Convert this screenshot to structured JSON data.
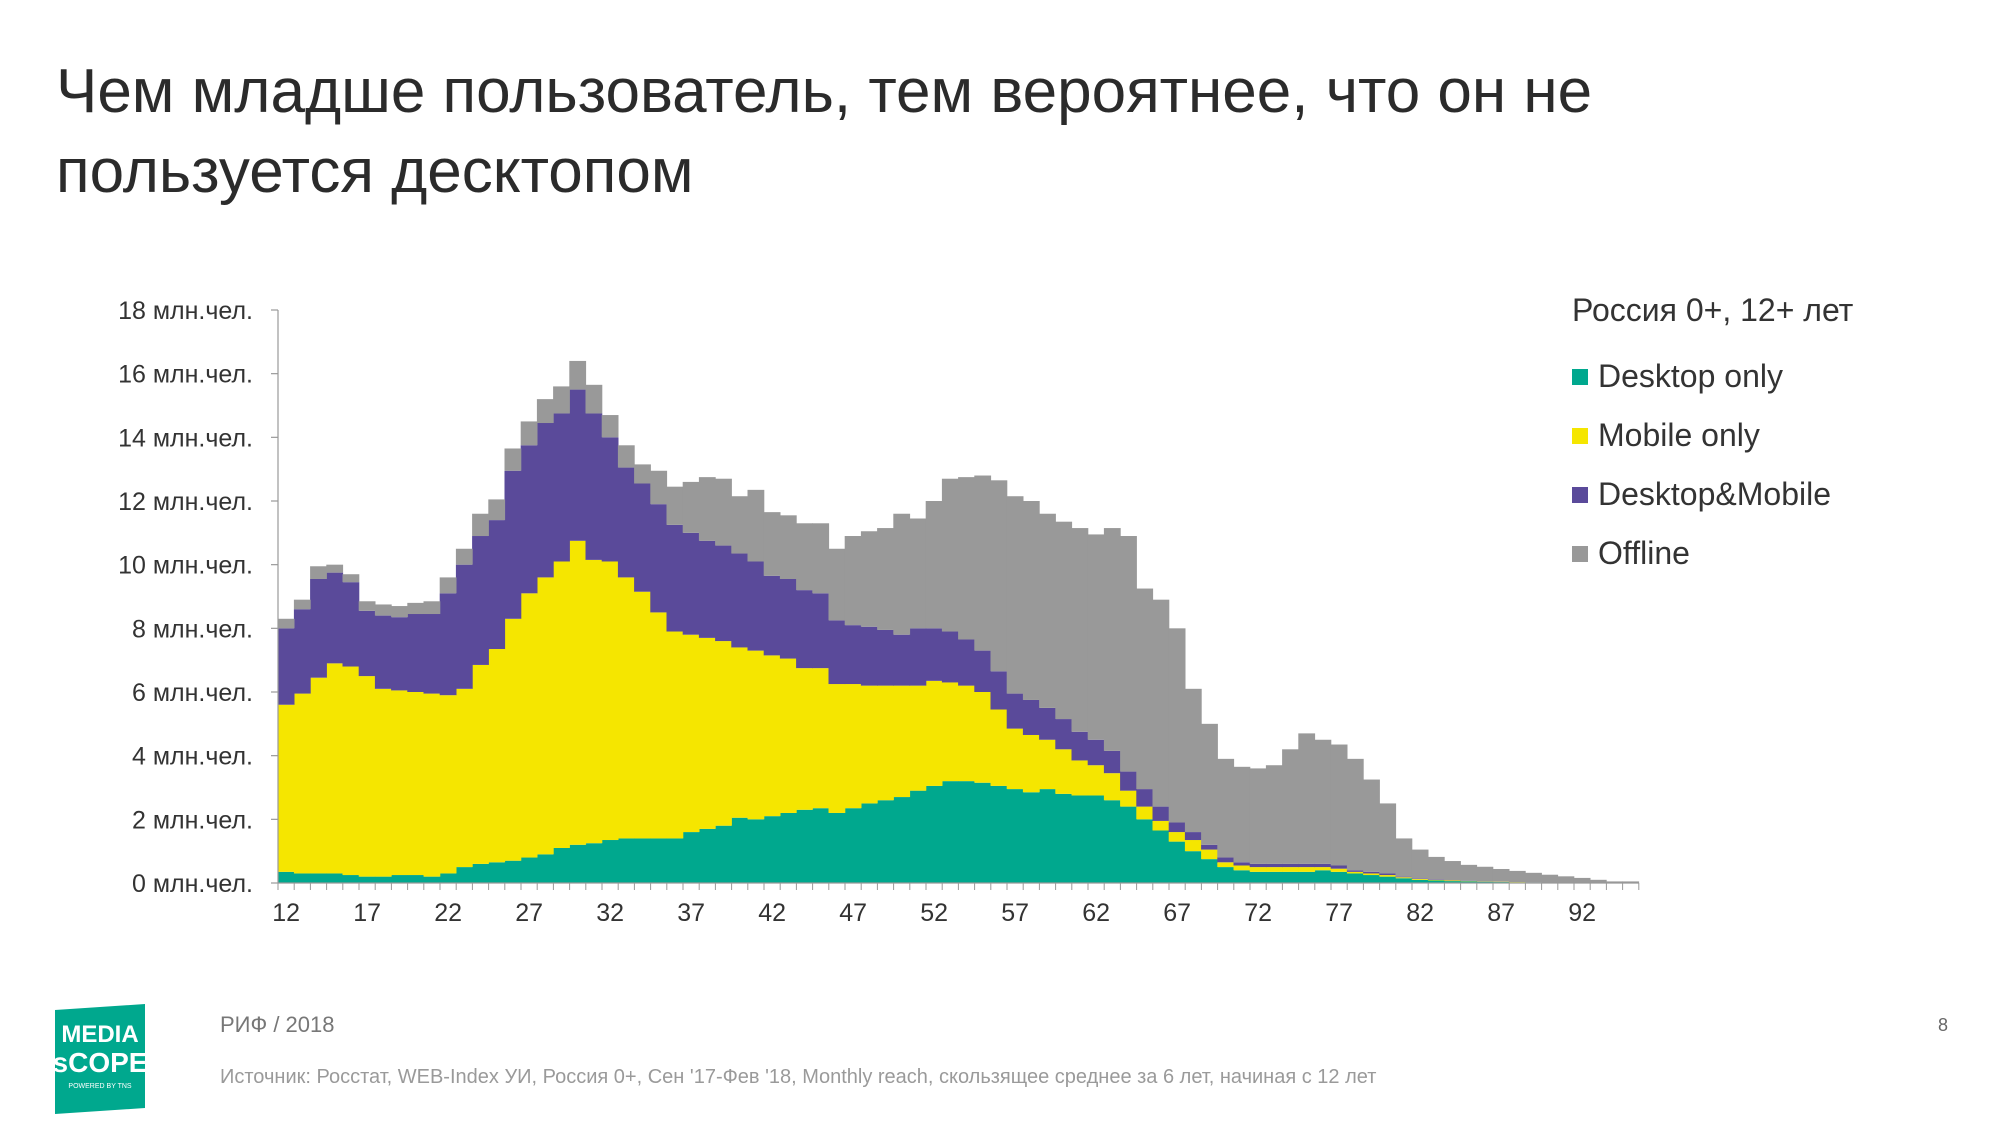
{
  "slide": {
    "title": "Чем младше пользователь, тем вероятнее, что он не пользуется десктопом",
    "footer_label": "РИФ / 2018",
    "source_note": "Источник: Росстат, WEB-Index УИ, Россия 0+, Сен '17-Фев '18, Monthly reach, скользящее среднее за 6 лет, начиная с 12 лет",
    "page_number": "8",
    "logo": {
      "line1": "MEDIA",
      "line2": "sCOPE",
      "line3": "POWERED BY TNS",
      "color": "#00a88e"
    }
  },
  "chart_data": {
    "type": "area",
    "stacked": true,
    "step": true,
    "legend_title": "Россия 0+, 12+ лет",
    "legend_position": "right",
    "x": [
      12,
      13,
      14,
      15,
      16,
      17,
      18,
      19,
      20,
      21,
      22,
      23,
      24,
      25,
      26,
      27,
      28,
      29,
      30,
      31,
      32,
      33,
      34,
      35,
      36,
      37,
      38,
      39,
      40,
      41,
      42,
      43,
      44,
      45,
      46,
      47,
      48,
      49,
      50,
      51,
      52,
      53,
      54,
      55,
      56,
      57,
      58,
      59,
      60,
      61,
      62,
      63,
      64,
      65,
      66,
      67,
      68,
      69,
      70,
      71,
      72,
      73,
      74,
      75,
      76,
      77,
      78,
      79,
      80,
      81,
      82,
      83,
      84,
      85,
      86,
      87,
      88,
      89,
      90,
      91,
      92,
      93,
      94,
      95
    ],
    "x_ticks": [
      12,
      17,
      22,
      27,
      32,
      37,
      42,
      47,
      52,
      57,
      62,
      67,
      72,
      77,
      82,
      87,
      92
    ],
    "y_ticks": [
      {
        "value": 0,
        "label": "0 млн.чел."
      },
      {
        "value": 2,
        "label": "2 млн.чел."
      },
      {
        "value": 4,
        "label": "4 млн.чел."
      },
      {
        "value": 6,
        "label": "6 млн.чел."
      },
      {
        "value": 8,
        "label": "8 млн.чел."
      },
      {
        "value": 10,
        "label": "10 млн.чел."
      },
      {
        "value": 12,
        "label": "12 млн.чел."
      },
      {
        "value": 14,
        "label": "14 млн.чел."
      },
      {
        "value": 16,
        "label": "16 млн.чел."
      },
      {
        "value": 18,
        "label": "18 млн.чел."
      }
    ],
    "ylim": [
      0,
      18
    ],
    "grid": false,
    "series": [
      {
        "name": "Desktop only",
        "color": "#00a88e",
        "values": [
          0.35,
          0.3,
          0.3,
          0.3,
          0.25,
          0.2,
          0.2,
          0.25,
          0.25,
          0.2,
          0.3,
          0.5,
          0.6,
          0.65,
          0.7,
          0.8,
          0.9,
          1.1,
          1.2,
          1.25,
          1.35,
          1.4,
          1.4,
          1.4,
          1.4,
          1.6,
          1.7,
          1.8,
          2.05,
          2.0,
          2.1,
          2.2,
          2.3,
          2.35,
          2.2,
          2.35,
          2.5,
          2.6,
          2.7,
          2.9,
          3.05,
          3.2,
          3.2,
          3.15,
          3.05,
          2.95,
          2.85,
          2.95,
          2.8,
          2.75,
          2.75,
          2.6,
          2.4,
          2.0,
          1.65,
          1.3,
          1.0,
          0.75,
          0.5,
          0.4,
          0.35,
          0.35,
          0.35,
          0.35,
          0.4,
          0.35,
          0.3,
          0.25,
          0.2,
          0.15,
          0.1,
          0.08,
          0.06,
          0.05,
          0.04,
          0.03,
          0.02,
          0.02,
          0.01,
          0.01,
          0.01,
          0,
          0,
          0
        ]
      },
      {
        "name": "Mobile only",
        "color": "#f5e600",
        "values": [
          5.25,
          5.65,
          6.15,
          6.6,
          6.55,
          6.3,
          5.9,
          5.8,
          5.75,
          5.75,
          5.6,
          5.6,
          6.25,
          6.7,
          7.6,
          8.3,
          8.7,
          9.0,
          9.55,
          8.9,
          8.75,
          8.2,
          7.75,
          7.1,
          6.5,
          6.2,
          6.0,
          5.8,
          5.35,
          5.3,
          5.05,
          4.85,
          4.45,
          4.4,
          4.05,
          3.9,
          3.7,
          3.6,
          3.5,
          3.3,
          3.3,
          3.1,
          3.0,
          2.85,
          2.4,
          1.9,
          1.8,
          1.55,
          1.4,
          1.1,
          0.95,
          0.85,
          0.5,
          0.4,
          0.3,
          0.3,
          0.35,
          0.3,
          0.15,
          0.15,
          0.15,
          0.15,
          0.15,
          0.15,
          0.1,
          0.1,
          0.05,
          0.05,
          0.05,
          0.03,
          0.03,
          0.02,
          0.02,
          0.01,
          0.01,
          0.01,
          0.01,
          0,
          0,
          0,
          0,
          0,
          0,
          0
        ]
      },
      {
        "name": "Desktop&Mobile",
        "color": "#5a4a9a",
        "values": [
          2.4,
          2.65,
          3.1,
          2.85,
          2.65,
          2.05,
          2.3,
          2.3,
          2.45,
          2.5,
          3.2,
          3.9,
          4.05,
          4.05,
          4.65,
          4.65,
          4.85,
          4.65,
          4.75,
          4.6,
          3.9,
          3.45,
          3.4,
          3.4,
          3.35,
          3.2,
          3.05,
          3.0,
          2.95,
          2.8,
          2.5,
          2.5,
          2.45,
          2.35,
          2.0,
          1.85,
          1.85,
          1.75,
          1.6,
          1.8,
          1.65,
          1.6,
          1.45,
          1.3,
          1.2,
          1.1,
          1.1,
          1.0,
          0.95,
          0.9,
          0.8,
          0.7,
          0.6,
          0.55,
          0.45,
          0.3,
          0.25,
          0.15,
          0.15,
          0.1,
          0.1,
          0.1,
          0.1,
          0.1,
          0.1,
          0.1,
          0.05,
          0.05,
          0.05,
          0.02,
          0.02,
          0.02,
          0.01,
          0.01,
          0.01,
          0,
          0,
          0,
          0,
          0,
          0,
          0,
          0,
          0
        ]
      },
      {
        "name": "Offline",
        "color": "#999999",
        "values": [
          0.3,
          0.3,
          0.4,
          0.25,
          0.25,
          0.3,
          0.35,
          0.35,
          0.35,
          0.4,
          0.5,
          0.5,
          0.7,
          0.65,
          0.7,
          0.75,
          0.75,
          0.85,
          0.9,
          0.9,
          0.7,
          0.7,
          0.6,
          1.05,
          1.2,
          1.6,
          2.0,
          2.1,
          1.8,
          2.25,
          2.0,
          2.0,
          2.1,
          2.2,
          2.25,
          2.8,
          3.0,
          3.2,
          3.8,
          3.45,
          4.0,
          4.8,
          5.1,
          5.5,
          6.0,
          6.2,
          6.25,
          6.1,
          6.2,
          6.4,
          6.45,
          7.0,
          7.4,
          6.3,
          6.5,
          6.1,
          4.5,
          3.8,
          3.1,
          3.0,
          3.0,
          3.1,
          3.6,
          4.1,
          3.9,
          3.8,
          3.5,
          2.9,
          2.2,
          1.2,
          0.9,
          0.7,
          0.6,
          0.5,
          0.45,
          0.4,
          0.35,
          0.3,
          0.25,
          0.2,
          0.15,
          0.1,
          0.05,
          0.05
        ]
      }
    ]
  }
}
